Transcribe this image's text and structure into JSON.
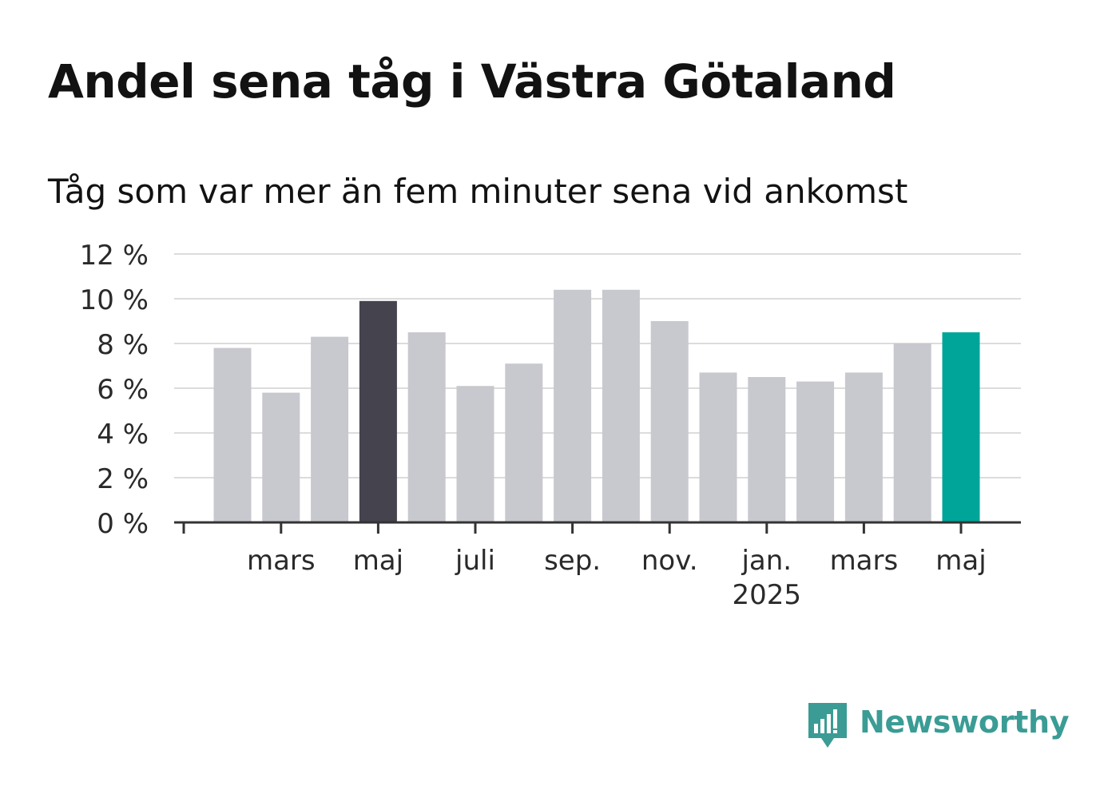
{
  "title": "Andel sena tåg i Västra Götaland",
  "subtitle": "Tåg som var mer än fem minuter sena vid ankomst",
  "brand": {
    "name": "Newsworthy",
    "color": "#3a9c95",
    "icon": "newsworthy-logo-icon"
  },
  "colors": {
    "bar_default": "#c8c8cf",
    "bar_highlight_dark": "#44434e",
    "bar_highlight_latest": "#00a599",
    "grid": "#dcdcdc",
    "axis": "#333333"
  },
  "chart_data": {
    "type": "bar",
    "title": "Andel sena tåg i Västra Götaland",
    "subtitle": "Tåg som var mer än fem minuter sena vid ankomst",
    "xlabel": "",
    "ylabel": "",
    "ylim": [
      0,
      12
    ],
    "yticks": [
      0,
      2,
      4,
      6,
      8,
      10,
      12
    ],
    "ytick_labels": [
      "0 %",
      "2 %",
      "4 %",
      "6 %",
      "8 %",
      "10 %",
      "12 %"
    ],
    "grid": true,
    "categories": [
      "2024-02",
      "2024-03",
      "2024-04",
      "2024-05",
      "2024-06",
      "2024-07",
      "2024-08",
      "2024-09",
      "2024-10",
      "2024-11",
      "2024-12",
      "2025-01",
      "2025-02",
      "2025-03",
      "2025-04",
      "2025-05"
    ],
    "values": [
      7.8,
      5.8,
      8.3,
      9.9,
      8.5,
      6.1,
      7.1,
      10.4,
      10.4,
      9.0,
      6.7,
      6.5,
      6.3,
      6.7,
      8.0,
      8.5
    ],
    "highlight": {
      "2024-05": "dark",
      "2025-05": "latest"
    },
    "xtick_labels": [
      {
        "category": "2024-03",
        "label": "mars"
      },
      {
        "category": "2024-05",
        "label": "maj"
      },
      {
        "category": "2024-07",
        "label": "juli"
      },
      {
        "category": "2024-09",
        "label": "sep."
      },
      {
        "category": "2024-11",
        "label": "nov."
      },
      {
        "category": "2025-01",
        "label": "jan.",
        "sublabel": "2025"
      },
      {
        "category": "2025-03",
        "label": "mars"
      },
      {
        "category": "2025-05",
        "label": "maj"
      }
    ]
  }
}
